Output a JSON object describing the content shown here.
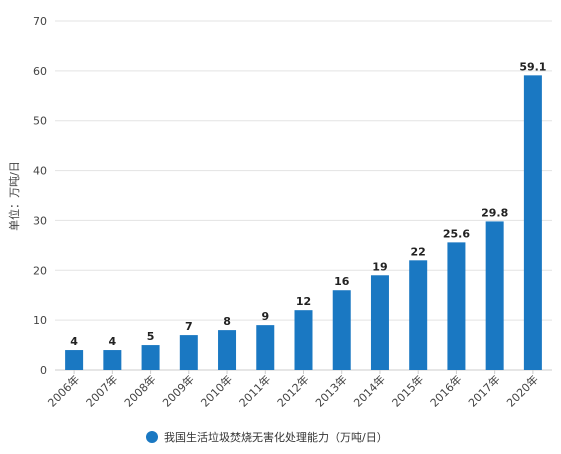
{
  "chart_data": {
    "type": "bar",
    "categories": [
      "2006年",
      "2007年",
      "2008年",
      "2009年",
      "2010年",
      "2011年",
      "2012年",
      "2013年",
      "2014年",
      "2015年",
      "2016年",
      "2017年",
      "2020年"
    ],
    "series": [
      {
        "name": "我国生活垃圾焚烧无害化处理能力（万吨/日）",
        "values": [
          4,
          4,
          5,
          7,
          8,
          9,
          12,
          16,
          19,
          22,
          25.6,
          29.8,
          59.1
        ],
        "data_labels": [
          "4",
          "4",
          "5",
          "7",
          "8",
          "9",
          "12",
          "16",
          "19",
          "22",
          "25.6",
          "29.8",
          "59.1"
        ]
      }
    ],
    "ylabel": "单位：万吨/日",
    "xlabel": "",
    "ylim": [
      0,
      70
    ],
    "yticks": [
      0,
      10,
      20,
      30,
      40,
      50,
      60,
      70
    ],
    "grid": true,
    "legend_position": "bottom",
    "colors": {
      "bar": "#1a78c2",
      "grid": "#e3e3e3",
      "axis": "#cccccc"
    }
  }
}
